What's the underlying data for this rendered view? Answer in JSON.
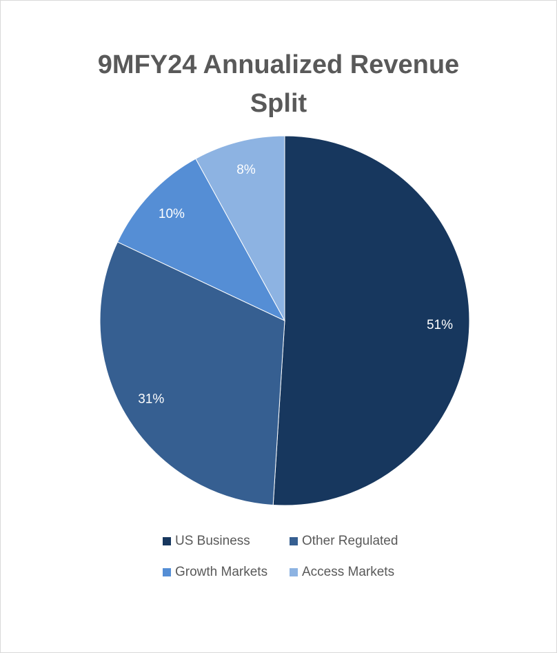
{
  "chart_data": {
    "type": "pie",
    "title": "9MFY24 Annualized Revenue Split",
    "categories": [
      "US Business",
      "Other Regulated",
      "Growth Markets",
      "Access Markets"
    ],
    "values": [
      51,
      31,
      10,
      8
    ],
    "value_labels": [
      "51%",
      "31%",
      "10%",
      "8%"
    ],
    "colors": [
      "#17375e",
      "#365f91",
      "#558ed5",
      "#8db3e2"
    ],
    "legend": "bottom"
  }
}
